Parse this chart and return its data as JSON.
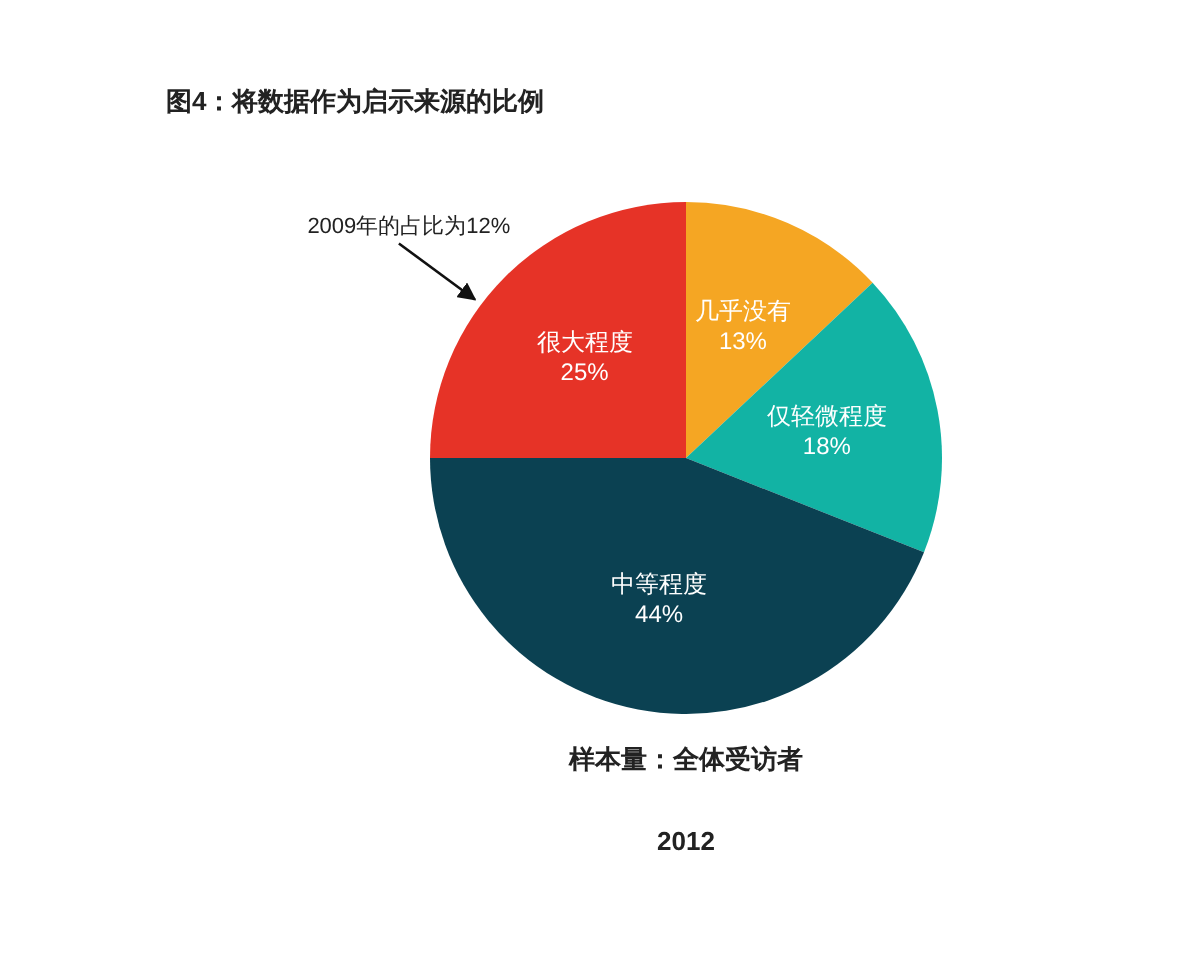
{
  "chart_data": {
    "type": "pie",
    "title": "图4：将数据作为启示来源的比例",
    "categories": [
      "几乎没有",
      "仅轻微程度",
      "中等程度",
      "很大程度"
    ],
    "values": [
      13,
      18,
      44,
      25
    ],
    "value_labels": [
      "13%",
      "18%",
      "44%",
      "25%"
    ],
    "colors": [
      "#f5a623",
      "#12b3a4",
      "#0b4152",
      "#e63327"
    ],
    "annotations": [
      {
        "text": "2009年的占比为12%",
        "x": "很大程度"
      },
      "样本量：全体受访者",
      "2012"
    ]
  }
}
